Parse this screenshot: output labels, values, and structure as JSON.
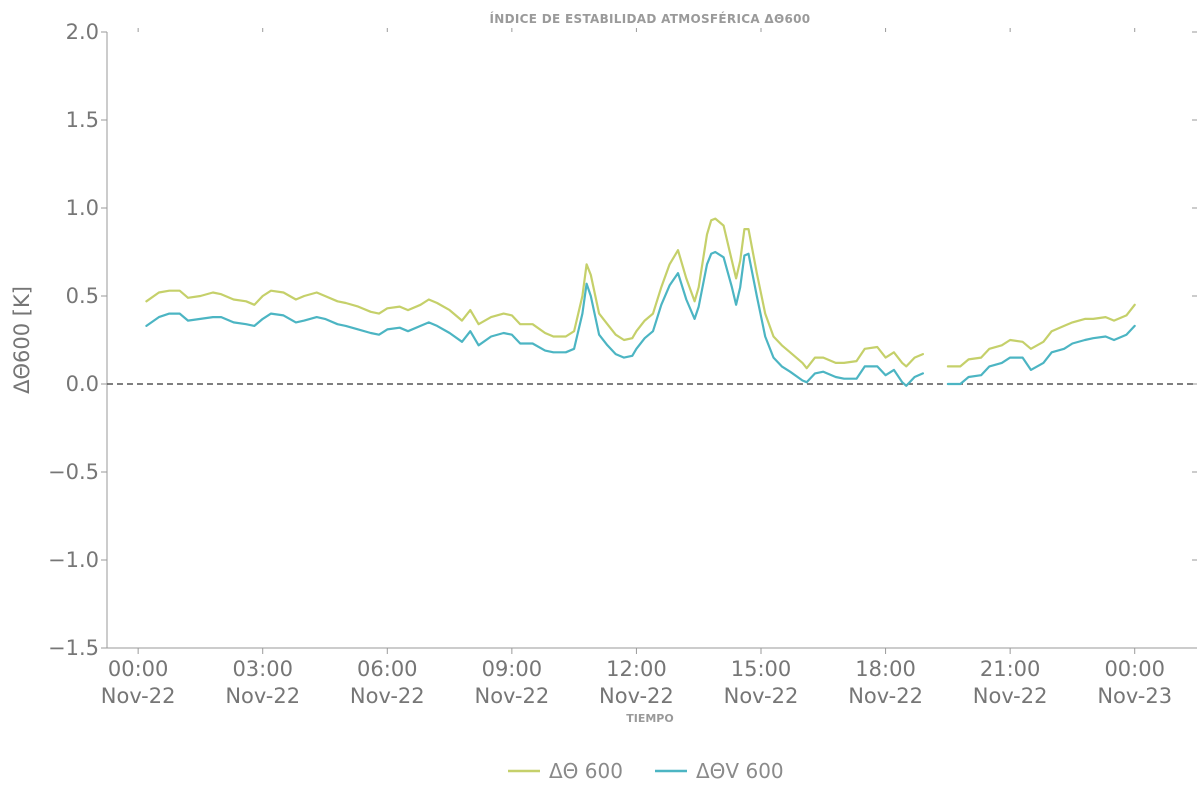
{
  "chart_data": {
    "type": "line",
    "title": "ÍNDICE DE ESTABILIDAD ATMOSFÉRICA ΔΘ600",
    "xlabel": "TIEMPO",
    "ylabel": "ΔΘ600 [K]",
    "ylim": [
      -1.5,
      2.0
    ],
    "xlim_hours": [
      -0.75,
      25.5
    ],
    "y_ticks": [
      "2.0",
      "1.5",
      "1.0",
      "0.5",
      "0.0",
      "−0.5",
      "−1.0",
      "−1.5"
    ],
    "x_ticks": [
      {
        "time": "00:00",
        "date": "Nov-22"
      },
      {
        "time": "03:00",
        "date": "Nov-22"
      },
      {
        "time": "06:00",
        "date": "Nov-22"
      },
      {
        "time": "09:00",
        "date": "Nov-22"
      },
      {
        "time": "12:00",
        "date": "Nov-22"
      },
      {
        "time": "15:00",
        "date": "Nov-22"
      },
      {
        "time": "18:00",
        "date": "Nov-22"
      },
      {
        "time": "21:00",
        "date": "Nov-22"
      },
      {
        "time": "00:00",
        "date": "Nov-23"
      }
    ],
    "reference_line": {
      "y": 0.0,
      "style": "dashed",
      "color": "#555555"
    },
    "grid": false,
    "legend_position": "bottom-center",
    "x_hours": [
      0.2,
      0.5,
      0.75,
      1.0,
      1.2,
      1.5,
      1.8,
      2.0,
      2.3,
      2.6,
      2.8,
      3.0,
      3.2,
      3.5,
      3.8,
      4.0,
      4.3,
      4.5,
      4.8,
      5.0,
      5.3,
      5.6,
      5.8,
      6.0,
      6.3,
      6.5,
      6.8,
      7.0,
      7.2,
      7.5,
      7.8,
      8.0,
      8.2,
      8.5,
      8.8,
      9.0,
      9.2,
      9.5,
      9.8,
      10.0,
      10.3,
      10.5,
      10.7,
      10.8,
      10.9,
      11.1,
      11.3,
      11.5,
      11.7,
      11.9,
      12.0,
      12.2,
      12.4,
      12.6,
      12.8,
      13.0,
      13.2,
      13.4,
      13.5,
      13.7,
      13.8,
      13.9,
      14.1,
      14.3,
      14.4,
      14.5,
      14.6,
      14.7,
      14.9,
      15.1,
      15.3,
      15.5,
      15.7,
      16.0,
      16.1,
      16.3,
      16.5,
      16.8,
      17.0,
      17.3,
      17.5,
      17.8,
      18.0,
      18.2,
      18.4,
      18.5,
      18.7,
      18.9,
      19.3,
      19.5,
      19.8,
      20.0,
      20.3,
      20.5,
      20.8,
      21.0,
      21.3,
      21.5,
      21.8,
      22.0,
      22.3,
      22.5,
      22.8,
      23.0,
      23.3,
      23.5,
      23.8,
      24.0
    ],
    "series": [
      {
        "name": "ΔΘ 600",
        "color": "#c5d06a",
        "values": [
          0.47,
          0.52,
          0.53,
          0.53,
          0.49,
          0.5,
          0.52,
          0.51,
          0.48,
          0.47,
          0.45,
          0.5,
          0.53,
          0.52,
          0.48,
          0.5,
          0.52,
          0.5,
          0.47,
          0.46,
          0.44,
          0.41,
          0.4,
          0.43,
          0.44,
          0.42,
          0.45,
          0.48,
          0.46,
          0.42,
          0.36,
          0.42,
          0.34,
          0.38,
          0.4,
          0.39,
          0.34,
          0.34,
          0.29,
          0.27,
          0.27,
          0.3,
          0.5,
          0.68,
          0.62,
          0.4,
          0.34,
          0.28,
          0.25,
          0.26,
          0.3,
          0.36,
          0.4,
          0.55,
          0.68,
          0.76,
          0.6,
          0.47,
          0.55,
          0.85,
          0.93,
          0.94,
          0.9,
          0.7,
          0.6,
          0.7,
          0.88,
          0.88,
          0.63,
          0.4,
          0.27,
          0.22,
          0.18,
          0.12,
          0.09,
          0.15,
          0.15,
          0.12,
          0.12,
          0.13,
          0.2,
          0.21,
          0.15,
          0.18,
          0.12,
          0.1,
          0.15,
          0.17,
          null,
          0.1,
          0.1,
          0.14,
          0.15,
          0.2,
          0.22,
          0.25,
          0.24,
          0.2,
          0.24,
          0.3,
          0.33,
          0.35,
          0.37,
          0.37,
          0.38,
          0.36,
          0.39,
          0.45
        ]
      },
      {
        "name": "ΔΘV 600",
        "color": "#4cb5c3",
        "values": [
          0.33,
          0.38,
          0.4,
          0.4,
          0.36,
          0.37,
          0.38,
          0.38,
          0.35,
          0.34,
          0.33,
          0.37,
          0.4,
          0.39,
          0.35,
          0.36,
          0.38,
          0.37,
          0.34,
          0.33,
          0.31,
          0.29,
          0.28,
          0.31,
          0.32,
          0.3,
          0.33,
          0.35,
          0.33,
          0.29,
          0.24,
          0.3,
          0.22,
          0.27,
          0.29,
          0.28,
          0.23,
          0.23,
          0.19,
          0.18,
          0.18,
          0.2,
          0.4,
          0.57,
          0.5,
          0.28,
          0.22,
          0.17,
          0.15,
          0.16,
          0.2,
          0.26,
          0.3,
          0.45,
          0.56,
          0.63,
          0.48,
          0.37,
          0.44,
          0.68,
          0.74,
          0.75,
          0.72,
          0.55,
          0.45,
          0.55,
          0.73,
          0.74,
          0.5,
          0.27,
          0.15,
          0.1,
          0.07,
          0.02,
          0.01,
          0.06,
          0.07,
          0.04,
          0.03,
          0.03,
          0.1,
          0.1,
          0.05,
          0.08,
          0.01,
          -0.01,
          0.04,
          0.06,
          null,
          0.0,
          0.0,
          0.04,
          0.05,
          0.1,
          0.12,
          0.15,
          0.15,
          0.08,
          0.12,
          0.18,
          0.2,
          0.23,
          0.25,
          0.26,
          0.27,
          0.25,
          0.28,
          0.33
        ]
      }
    ]
  }
}
